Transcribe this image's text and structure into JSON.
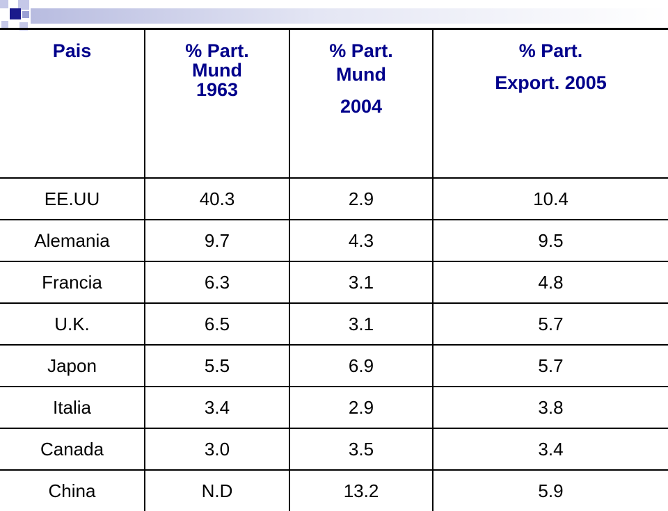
{
  "header": {
    "pais": "Pais",
    "col1": {
      "line1": "% Part.",
      "line2": "Mund",
      "line3": "1963"
    },
    "col2": {
      "line1": "% Part.",
      "line2": "Mund",
      "line3": "2004"
    },
    "col3": {
      "line1": "% Part.",
      "line2": "Export. 2005"
    }
  },
  "rows": [
    {
      "pais": "EE.UU",
      "v1963": "40.3",
      "v2004": "2.9",
      "v2005": "10.4"
    },
    {
      "pais": "Alemania",
      "v1963": "9.7",
      "v2004": "4.3",
      "v2005": "9.5"
    },
    {
      "pais": "Francia",
      "v1963": "6.3",
      "v2004": "3.1",
      "v2005": "4.8"
    },
    {
      "pais": "U.K.",
      "v1963": "6.5",
      "v2004": "3.1",
      "v2005": "5.7"
    },
    {
      "pais": "Japon",
      "v1963": "5.5",
      "v2004": "6.9",
      "v2005": "5.7"
    },
    {
      "pais": "Italia",
      "v1963": "3.4",
      "v2004": "2.9",
      "v2005": "3.8"
    },
    {
      "pais": "Canada",
      "v1963": "3.0",
      "v2004": "3.5",
      "v2005": "3.4"
    },
    {
      "pais": "China",
      "v1963": "N.D",
      "v2004": "13.2",
      "v2005": "5.9"
    }
  ],
  "colors": {
    "header_text": "#00008b",
    "accent_navy": "#1a1a8c",
    "accent_light": "#c5c8e8"
  }
}
